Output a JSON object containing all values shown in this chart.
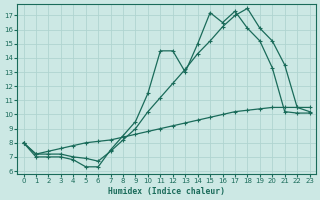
{
  "bg_color": "#cce8e4",
  "grid_color": "#b0d4d0",
  "line_color": "#1a6b5a",
  "xlim": [
    -0.5,
    23.5
  ],
  "ylim": [
    5.8,
    17.8
  ],
  "xticks": [
    0,
    1,
    2,
    3,
    4,
    5,
    6,
    7,
    8,
    9,
    10,
    11,
    12,
    13,
    14,
    15,
    16,
    17,
    18,
    19,
    20,
    21,
    22,
    23
  ],
  "yticks": [
    6,
    7,
    8,
    9,
    10,
    11,
    12,
    13,
    14,
    15,
    16,
    17
  ],
  "xlabel": "Humidex (Indice chaleur)",
  "line1_x": [
    0,
    1,
    2,
    3,
    4,
    5,
    6,
    7,
    8,
    9,
    10,
    11,
    12,
    13,
    14,
    15,
    16,
    17,
    18,
    19,
    20,
    21,
    22,
    23
  ],
  "line1_y": [
    8.0,
    7.0,
    7.0,
    7.0,
    6.8,
    6.3,
    6.3,
    7.5,
    8.5,
    9.5,
    11.5,
    14.5,
    14.5,
    13.0,
    15.0,
    17.2,
    16.5,
    17.3,
    16.1,
    15.2,
    13.3,
    10.2,
    10.1,
    10.1
  ],
  "line2_x": [
    0,
    1,
    2,
    3,
    4,
    5,
    6,
    7,
    8,
    9,
    10,
    11,
    12,
    13,
    14,
    15,
    16,
    17,
    18,
    19,
    20,
    21,
    22,
    23
  ],
  "line2_y": [
    8.0,
    7.2,
    7.2,
    7.2,
    7.0,
    6.9,
    6.7,
    7.4,
    8.2,
    9.0,
    10.2,
    11.2,
    12.2,
    13.2,
    14.3,
    15.2,
    16.2,
    17.0,
    17.5,
    16.1,
    15.2,
    13.5,
    10.5,
    10.2
  ],
  "line3_x": [
    0,
    1,
    2,
    3,
    4,
    5,
    6,
    7,
    8,
    9,
    10,
    11,
    12,
    13,
    14,
    15,
    16,
    17,
    18,
    19,
    20,
    21,
    22,
    23
  ],
  "line3_y": [
    8.0,
    7.2,
    7.4,
    7.6,
    7.8,
    8.0,
    8.1,
    8.2,
    8.4,
    8.6,
    8.8,
    9.0,
    9.2,
    9.4,
    9.6,
    9.8,
    10.0,
    10.2,
    10.3,
    10.4,
    10.5,
    10.5,
    10.5,
    10.5
  ]
}
